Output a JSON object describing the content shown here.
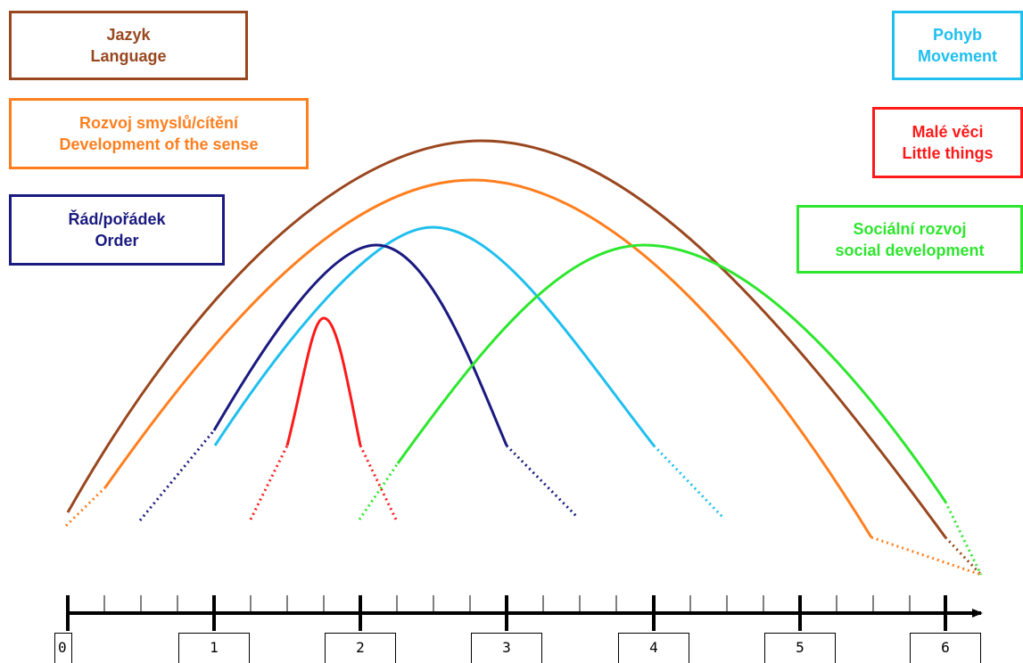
{
  "legend": {
    "language": {
      "line1": "Jazyk",
      "line2": "Language",
      "color": "#99471f"
    },
    "senses": {
      "line1": "Rozvoj smyslů/cítění",
      "line2": "Development of the sense",
      "color": "#ff7f1f"
    },
    "order": {
      "line1": "Řád/pořádek",
      "line2": "Order",
      "color": "#1a1a80"
    },
    "movement": {
      "line1": "Pohyb",
      "line2": "Movement",
      "color": "#1fbfee"
    },
    "little_things": {
      "line1": "Malé věci",
      "line2": "Little things",
      "color": "#ff1a1a"
    },
    "social": {
      "line1": "Sociální rozvoj",
      "line2": "social development",
      "color": "#2ee62e"
    }
  },
  "axis": {
    "ticks": [
      "0",
      "1",
      "2",
      "3",
      "4",
      "5",
      "6"
    ]
  }
}
